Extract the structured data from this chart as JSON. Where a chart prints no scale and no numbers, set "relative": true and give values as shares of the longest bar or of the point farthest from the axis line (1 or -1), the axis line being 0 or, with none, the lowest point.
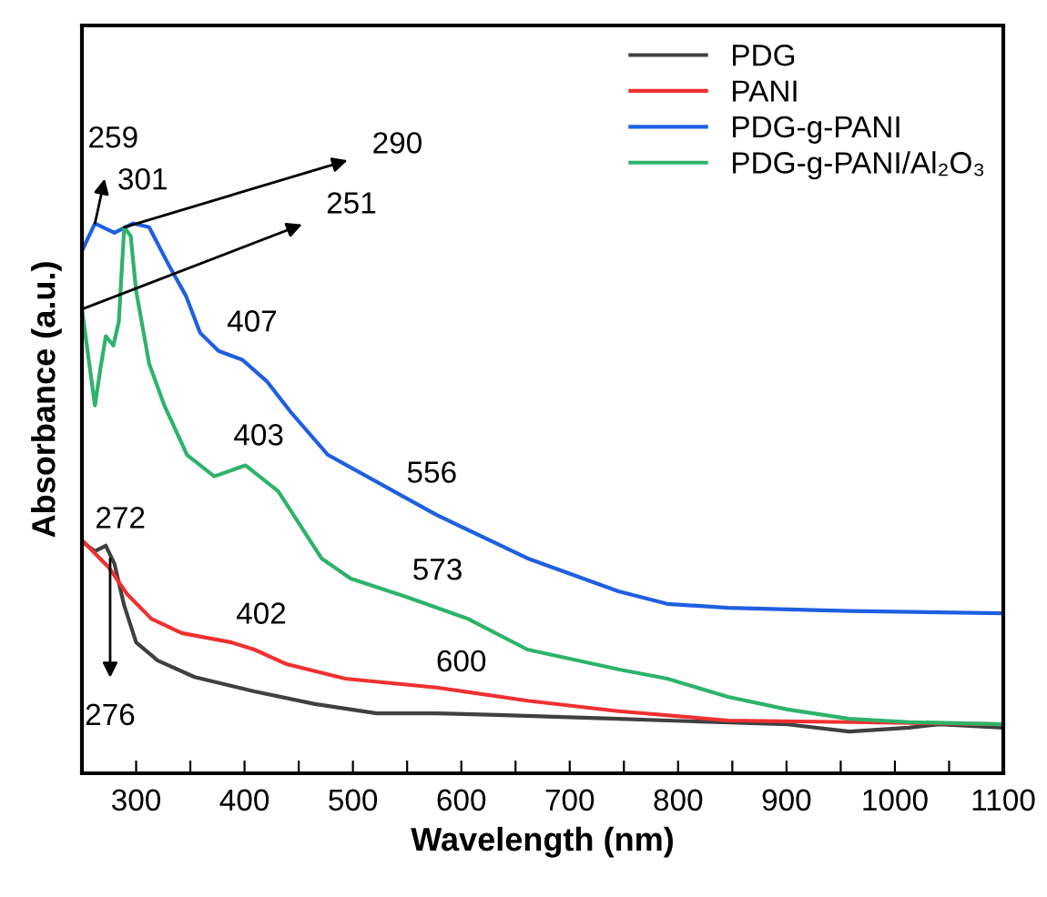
{
  "chart_data": {
    "type": "line",
    "xlabel": "Wavelength (nm)",
    "ylabel": "Absorbance (a.u.)",
    "relative": true,
    "xlim": [
      250,
      1100
    ],
    "xticks": [
      300,
      {
        "value": 350,
        "label": null
      },
      400,
      {
        "value": 450,
        "label": null
      },
      500,
      {
        "value": 550,
        "label": null
      },
      600,
      {
        "value": 650,
        "label": null
      },
      700,
      {
        "value": 750,
        "label": null
      },
      800,
      {
        "value": 850,
        "label": null
      },
      900,
      {
        "value": 950,
        "label": null
      },
      1000,
      {
        "value": 1050,
        "label": null
      },
      1100
    ],
    "legend": "top right",
    "grid": false,
    "line_style": "solid",
    "marker": "none",
    "series": [
      {
        "name": "PDG",
        "color": "#404040",
        "x": [
          250,
          262,
          272,
          280,
          289,
          300,
          320,
          354,
          409,
          465,
          522,
          577,
          633,
          745,
          790,
          901,
          958,
          1013,
          1041,
          1100
        ],
        "values": [
          0.421,
          0.404,
          0.414,
          0.381,
          0.305,
          0.238,
          0.205,
          0.175,
          0.149,
          0.126,
          0.109,
          0.109,
          0.106,
          0.099,
          0.096,
          0.089,
          0.076,
          0.083,
          0.089,
          0.083
        ]
      },
      {
        "name": "PANI",
        "color": "#f03030",
        "x": [
          250,
          275,
          292,
          314,
          342,
          388,
          409,
          438,
          493,
          577,
          661,
          745,
          846,
          958,
          1100
        ],
        "values": [
          0.424,
          0.374,
          0.325,
          0.281,
          0.255,
          0.238,
          0.225,
          0.199,
          0.172,
          0.156,
          0.132,
          0.113,
          0.096,
          0.093,
          0.089
        ]
      },
      {
        "name": "PDG-g-PANI",
        "color": "#1f5fe0",
        "x": [
          250,
          262,
          280,
          297,
          312,
          331,
          346,
          359,
          376,
          398,
          421,
          443,
          477,
          577,
          661,
          745,
          790,
          846,
          958,
          1100
        ],
        "values": [
          0.95,
          1.0,
          0.983,
          1.0,
          0.993,
          0.921,
          0.868,
          0.801,
          0.768,
          0.752,
          0.712,
          0.656,
          0.579,
          0.47,
          0.391,
          0.331,
          0.308,
          0.301,
          0.295,
          0.291
        ]
      },
      {
        "name": "PDG-g-PANI/Al₂O₃",
        "color": "#2db36b",
        "x": [
          250,
          262,
          267,
          272,
          279,
          284,
          289,
          295,
          300,
          312,
          326,
          347,
          372,
          401,
          431,
          471,
          498,
          549,
          606,
          661,
          745,
          790,
          846,
          901,
          958,
          1013,
          1100
        ],
        "values": [
          0.844,
          0.669,
          0.735,
          0.795,
          0.778,
          0.821,
          0.993,
          0.977,
          0.877,
          0.745,
          0.669,
          0.579,
          0.54,
          0.56,
          0.513,
          0.391,
          0.354,
          0.321,
          0.281,
          0.225,
          0.189,
          0.172,
          0.139,
          0.116,
          0.099,
          0.093,
          0.089
        ]
      }
    ],
    "annotations": [
      {
        "text": "259",
        "x": 262,
        "y": 1.0
      },
      {
        "text": "301",
        "x": 301,
        "y": 1.0
      },
      {
        "text": "290",
        "x": 289,
        "y": 0.993
      },
      {
        "text": "251",
        "x": 250,
        "y": 0.844
      },
      {
        "text": "407",
        "x": 407,
        "y": 0.745
      },
      {
        "text": "403",
        "x": 403,
        "y": 0.558
      },
      {
        "text": "556",
        "x": 556,
        "y": 0.49
      },
      {
        "text": "573",
        "x": 573,
        "y": 0.3
      },
      {
        "text": "272",
        "x": 272,
        "y": 0.414
      },
      {
        "text": "276",
        "x": 276,
        "y": 0.39
      },
      {
        "text": "402",
        "x": 402,
        "y": 0.23
      },
      {
        "text": "600",
        "x": 600,
        "y": 0.15
      }
    ]
  }
}
